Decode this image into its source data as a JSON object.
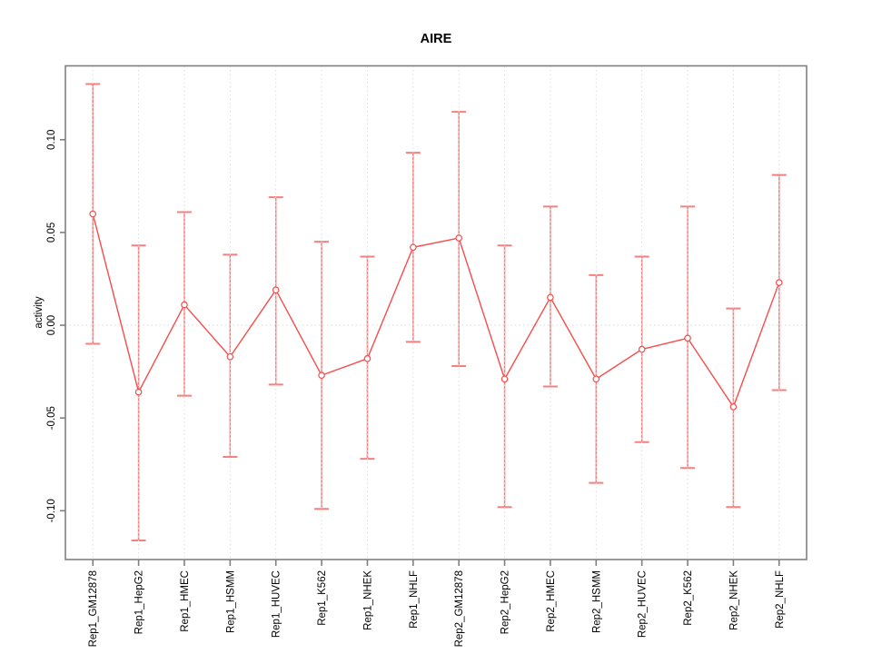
{
  "window": {
    "background_color": "#ffffff"
  },
  "chart_data": {
    "type": "line",
    "title": "AIRE",
    "xlabel": "",
    "ylabel": "activity",
    "legend": "none",
    "categories": [
      "Rep1_GM12878",
      "Rep1_HepG2",
      "Rep1_HMEC",
      "Rep1_HSMM",
      "Rep1_HUVEC",
      "Rep1_K562",
      "Rep1_NHEK",
      "Rep1_NHLF",
      "Rep2_GM12878",
      "Rep2_HepG2",
      "Rep2_HMEC",
      "Rep2_HSMM",
      "Rep2_HUVEC",
      "Rep2_K562",
      "Rep2_NHEK",
      "Rep2_NHLF"
    ],
    "series": [
      {
        "name": "activity",
        "values": [
          0.06,
          -0.036,
          0.011,
          -0.017,
          0.019,
          -0.027,
          -0.018,
          0.042,
          0.047,
          -0.029,
          0.015,
          -0.029,
          -0.013,
          -0.007,
          -0.044,
          0.023
        ]
      }
    ],
    "error_bars": {
      "upper": [
        0.13,
        0.043,
        0.061,
        0.038,
        0.069,
        0.045,
        0.037,
        0.093,
        0.115,
        0.043,
        0.064,
        0.027,
        0.037,
        0.064,
        0.009,
        0.081
      ],
      "lower": [
        -0.01,
        -0.116,
        -0.038,
        -0.071,
        -0.032,
        -0.099,
        -0.072,
        -0.009,
        -0.022,
        -0.098,
        -0.033,
        -0.085,
        -0.063,
        -0.077,
        -0.098,
        -0.035
      ]
    },
    "yticks": {
      "values": [
        -0.1,
        -0.05,
        0.0,
        0.05,
        0.1
      ],
      "labels": [
        "-0.10",
        "-0.05",
        "0.00",
        "0.05",
        "0.10"
      ]
    },
    "ylim": [
      -0.1263,
      0.1398
    ],
    "grid": {
      "vertical_dotted_per_category": true,
      "horizontal_dotted_zero_line": true
    },
    "marker": "open-circle",
    "colors": {
      "series_line": "#f64c4c",
      "marker_stroke": "#f64c4c",
      "error_bar": "#f87f7f",
      "grid_line": "#dcdcdc",
      "zero_line": "#d8d8d8",
      "axis_box": "#808080",
      "text": "#000000"
    }
  }
}
